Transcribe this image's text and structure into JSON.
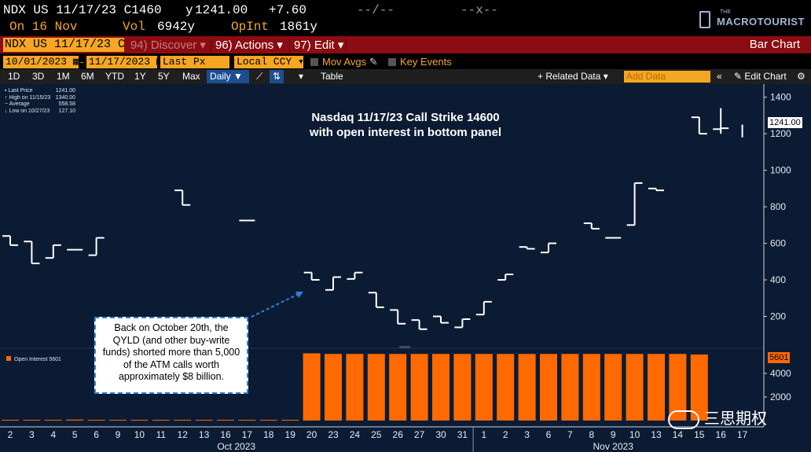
{
  "quote": {
    "line1": {
      "symbol": "NDX US 11/17/23 C1460",
      "last_prefix": "y",
      "last": "1241.00",
      "change": "+7.60",
      "bidask": "--/--",
      "cross": "--x--"
    },
    "line2": {
      "on": "On 16 Nov",
      "vol_label": "Vol",
      "vol": "6942y",
      "opint_label": "OpInt",
      "opint": "1861y"
    }
  },
  "logo": {
    "the": "THE",
    "name": "MACROTOURIST"
  },
  "menubar": {
    "ticker": "NDX US 11/17/23 C",
    "items": [
      {
        "label": "94) Discover",
        "enabled": false
      },
      {
        "label": "96) Actions",
        "enabled": true
      },
      {
        "label": "97) Edit",
        "enabled": true
      }
    ],
    "right": "Bar Chart"
  },
  "settings": {
    "start_date": "10/01/2023",
    "end_date": "11/17/2023",
    "field": "Last Px",
    "currency": "Local CCY",
    "mov_avgs": "Mov Avgs",
    "key_events": "Key Events"
  },
  "toolbar": {
    "periods": [
      "1D",
      "3D",
      "1M",
      "6M",
      "YTD",
      "1Y",
      "5Y",
      "Max"
    ],
    "frequency": "Daily",
    "table": "Table",
    "related": "+ Related Data",
    "add_data_placeholder": "Add Data",
    "edit_chart": "Edit Chart"
  },
  "colors": {
    "background": "#0b1b33",
    "price": "#ffffff",
    "open_interest": "#ff6a00",
    "menu_bar": "#8b0c12",
    "field": "#f5a623"
  },
  "chart_data": [
    {
      "type": "line",
      "title": "Nasdaq 11/17/23 Call Strike 14600",
      "subtitle": "with open interest in bottom panel",
      "legend": [
        {
          "label": "Last Price",
          "value": "1241.00"
        },
        {
          "label": "High on 11/15/23",
          "value": "1340.00"
        },
        {
          "label": "Average",
          "value": "558.58"
        },
        {
          "label": "Low on 10/27/23",
          "value": "127.10"
        }
      ],
      "last_value_flag": "1241.00",
      "yticks": [
        200,
        400,
        600,
        800,
        1000,
        1200,
        1400
      ],
      "ylim": [
        30,
        1450
      ],
      "x": [
        "2",
        "3",
        "4",
        "5",
        "6",
        "9",
        "10",
        "11",
        "12",
        "13",
        "16",
        "17",
        "18",
        "19",
        "20",
        "23",
        "24",
        "25",
        "26",
        "27",
        "30",
        "31",
        "1",
        "2",
        "3",
        "6",
        "7",
        "8",
        "9",
        "10",
        "13",
        "14",
        "15",
        "16",
        "17"
      ],
      "month_labels": [
        "Oct 2023",
        "Nov 2023"
      ],
      "bars": [
        {
          "x": "2",
          "open": 640,
          "close": 590
        },
        {
          "x": "3",
          "open": 610,
          "close": 490
        },
        {
          "x": "4",
          "open": 520,
          "close": 590
        },
        {
          "x": "5",
          "open": 565,
          "close": 565
        },
        {
          "x": "6",
          "open": 535,
          "close": 630
        },
        {
          "x": "12",
          "open": 890,
          "close": 810
        },
        {
          "x": "17",
          "open": 725,
          "close": 725
        },
        {
          "x": "20",
          "open": 440,
          "close": 400
        },
        {
          "x": "23",
          "open": 345,
          "close": 415
        },
        {
          "x": "24",
          "open": 405,
          "close": 440
        },
        {
          "x": "25",
          "open": 330,
          "close": 250
        },
        {
          "x": "26",
          "open": 235,
          "close": 160
        },
        {
          "x": "27",
          "open": 180,
          "close": 130
        },
        {
          "x": "30",
          "open": 200,
          "close": 165
        },
        {
          "x": "31",
          "open": 140,
          "close": 185
        },
        {
          "x": "1",
          "open": 210,
          "close": 280
        },
        {
          "x": "2",
          "open": 400,
          "close": 430
        },
        {
          "x": "3",
          "open": 580,
          "close": 570
        },
        {
          "x": "6",
          "open": 550,
          "close": 600
        },
        {
          "x": "8",
          "open": 710,
          "close": 680
        },
        {
          "x": "9",
          "open": 630,
          "close": 630
        },
        {
          "x": "10",
          "open": 700,
          "close": 930
        },
        {
          "x": "13",
          "open": 900,
          "close": 890
        },
        {
          "x": "15",
          "open": 1290,
          "close": 1200
        },
        {
          "x": "16",
          "open": 1225,
          "close": 1230
        }
      ]
    },
    {
      "type": "bar",
      "legend": "Open Interest 5601",
      "last_value_flag": "5601",
      "yticks": [
        2000,
        4000
      ],
      "ylim": [
        0,
        6000
      ],
      "values": [
        60,
        60,
        60,
        80,
        60,
        60,
        60,
        60,
        60,
        60,
        60,
        60,
        60,
        60,
        5700,
        5650,
        5650,
        5650,
        5650,
        5650,
        5650,
        5650,
        5650,
        5650,
        5650,
        5650,
        5650,
        5650,
        5650,
        5650,
        5650,
        5650,
        5601,
        0,
        0
      ]
    }
  ],
  "callout": "Back on October 20th, the QYLD (and other buy-write funds) shorted more than 5,000 of the ATM calls worth approximately $8 billion.",
  "watermark": "三思期权"
}
